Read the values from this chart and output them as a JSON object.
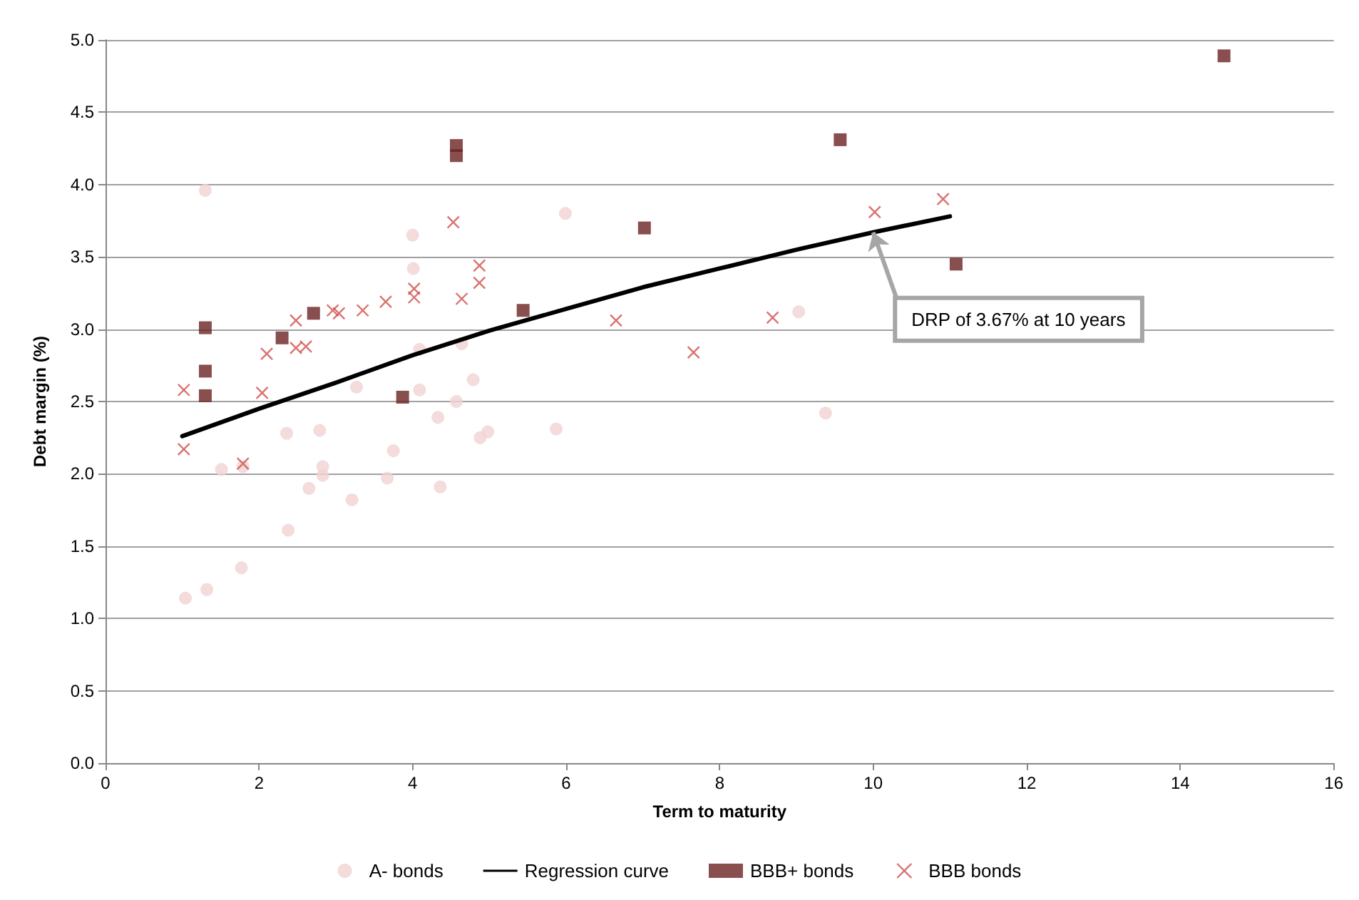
{
  "chart_data": {
    "type": "scatter",
    "xlabel": "Term to maturity",
    "ylabel": "Debt margin (%)",
    "xlim": [
      0,
      16
    ],
    "xticks": [
      0,
      2,
      4,
      6,
      8,
      10,
      12,
      14,
      16
    ],
    "ylim": [
      0,
      5
    ],
    "yticks": [
      {
        "value": 0,
        "label": "0.0"
      },
      {
        "value": 0.5,
        "label": "0.5"
      },
      {
        "value": 1,
        "label": "1.0"
      },
      {
        "value": 1.5,
        "label": "1.5"
      },
      {
        "value": 2,
        "label": "2.0"
      },
      {
        "value": 2.5,
        "label": "2.5"
      },
      {
        "value": 3,
        "label": "3.0"
      },
      {
        "value": 3.5,
        "label": "3.5"
      },
      {
        "value": 4,
        "label": "4.0"
      },
      {
        "value": 4.5,
        "label": "4.5"
      },
      {
        "value": 5,
        "label": "5.0"
      }
    ],
    "grid": "y",
    "legend": "bottom",
    "series": [
      {
        "name": "A- bonds",
        "marker": "circle",
        "color": "#f0d3d2",
        "x": [
          1.3,
          3.27,
          2.36,
          2.79,
          1.51,
          1.79,
          2.83,
          2.83,
          2.65,
          3.21,
          2.38,
          1.77,
          1.32,
          1.04,
          5.99,
          4.0,
          4.01,
          4.09,
          4.64,
          4.09,
          4.79,
          4.57,
          4.33,
          4.88,
          4.98,
          5.87,
          3.75,
          3.67,
          4.36,
          9.03,
          9.38
        ],
        "values": [
          3.96,
          2.6,
          2.28,
          2.3,
          2.03,
          2.05,
          2.05,
          1.99,
          1.9,
          1.82,
          1.61,
          1.35,
          1.2,
          1.14,
          3.8,
          3.65,
          3.42,
          2.86,
          2.9,
          2.58,
          2.65,
          2.5,
          2.39,
          2.25,
          2.29,
          2.31,
          2.16,
          1.97,
          1.91,
          3.12,
          2.42
        ]
      },
      {
        "name": "Regression curve",
        "type": "line",
        "marker": "none",
        "line_style": "solid",
        "color": "#000000",
        "x": [
          1,
          2,
          3,
          4,
          5,
          6,
          7,
          8,
          9,
          10,
          11
        ],
        "values": [
          2.26,
          2.45,
          2.63,
          2.82,
          2.99,
          3.14,
          3.29,
          3.42,
          3.55,
          3.67,
          3.78
        ]
      },
      {
        "name": "BBB+ bonds",
        "marker": "square",
        "color": "#6b2222",
        "x": [
          1.3,
          1.3,
          1.3,
          2.3,
          2.71,
          4.57,
          4.57,
          3.87,
          5.44,
          9.57,
          7.02,
          11.08,
          14.57
        ],
        "values": [
          3.01,
          2.71,
          2.54,
          2.94,
          3.11,
          4.2,
          4.27,
          2.53,
          3.13,
          4.31,
          3.7,
          3.45,
          4.89
        ]
      },
      {
        "name": "BBB bonds",
        "marker": "cross",
        "color": "#d0504e",
        "x": [
          1.02,
          1.02,
          1.79,
          2.04,
          2.1,
          2.48,
          2.48,
          2.61,
          2.96,
          3.04,
          3.35,
          3.65,
          4.02,
          4.02,
          4.53,
          4.64,
          4.87,
          4.87,
          6.65,
          7.66,
          8.69,
          10.02,
          10.91
        ],
        "values": [
          2.58,
          2.17,
          2.07,
          2.56,
          2.83,
          3.06,
          2.87,
          2.88,
          3.13,
          3.11,
          3.13,
          3.19,
          3.28,
          3.22,
          3.74,
          3.21,
          3.44,
          3.32,
          3.06,
          2.84,
          3.08,
          3.81,
          3.9
        ]
      }
    ],
    "annotations": [
      {
        "text": "DRP of 3.67% at 10 years",
        "x": 10,
        "y": 3.67
      }
    ]
  }
}
